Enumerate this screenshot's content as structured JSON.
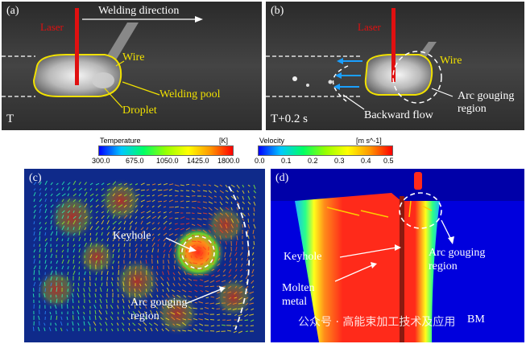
{
  "panels": {
    "a": {
      "tag": "(a)",
      "corner": "T",
      "laser": "Laser",
      "direction": "Welding direction",
      "wire": "Wire",
      "pool": "Welding pool",
      "droplet": "Droplet"
    },
    "b": {
      "tag": "(b)",
      "corner": "T+0.2 s",
      "laser": "Laser",
      "wire": "Wire",
      "arc": "Arc gouging region",
      "backward": "Backward flow"
    },
    "c": {
      "tag": "(c)",
      "keyhole": "Keyhole",
      "arc": "Arc gouging region"
    },
    "d": {
      "tag": "(d)",
      "keyhole": "Keyhole",
      "molten": "Molten metal",
      "arc": "Arc gouging region",
      "bm": "BM"
    }
  },
  "colorbars": {
    "temperature": {
      "title": "Temperature",
      "unit": "[K]",
      "ticks": [
        "300.0",
        "675.0",
        "1050.0",
        "1425.0",
        "1800.0"
      ]
    },
    "velocity": {
      "title": "Velocity",
      "unit": "[m s^-1]",
      "ticks": [
        "0.0",
        "0.1",
        "0.2",
        "0.3",
        "0.4",
        "0.5"
      ]
    }
  },
  "watermark": "公众号 · 高能束加工技术及应用",
  "colors": {
    "accent_yellow": "#f0e000",
    "laser_red": "#e01010",
    "arrow_blue": "#1a9fff",
    "field_blue": "#0f2a8a"
  }
}
